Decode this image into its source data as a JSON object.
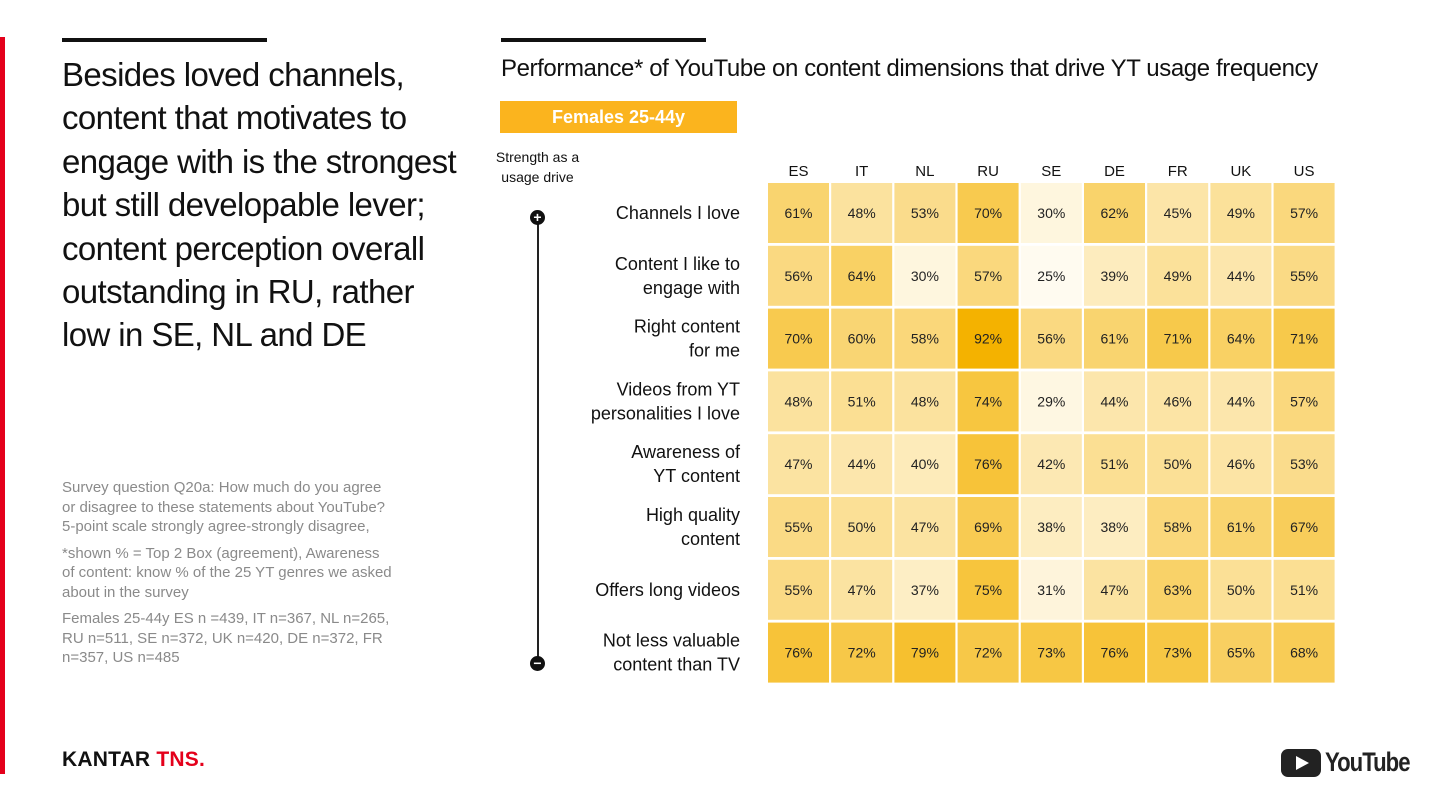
{
  "headline": "Besides loved channels, content that motivates to engage with is the strongest but still developable lever; content perception overall outstanding in RU, rather low in SE, NL and DE",
  "notes": {
    "survey": "Survey question Q20a: How much do you agree or disagree to these statements about YouTube? 5-point scale strongly agree-strongly disagree,",
    "shown": "*shown % = Top 2 Box (agreement), Awareness of content: know % of the 25 YT genres we asked about in the survey",
    "sample": "Females 25-44y ES n =439, IT n=367, NL n=265, RU n=511, SE n=372, UK n=420, DE n=372, FR n=357, US n=485"
  },
  "logos": {
    "kantar_main": "KANTAR",
    "kantar_accent": "TNS.",
    "youtube": "YouTube"
  },
  "colors": {
    "brand_red": "#e4001b",
    "accent_yellow": "#fbb41e",
    "heat_low": "#fffbf0",
    "heat_high": "#f4b200"
  },
  "segment_tag": "Females 25-44y",
  "strength_label": "Strength as a usage drive",
  "axis_ends": {
    "top": "+",
    "bottom": "−"
  },
  "chart_data": {
    "type": "heatmap",
    "title": "Performance* of YouTube on content dimensions that drive YT usage frequency",
    "columns": [
      "ES",
      "IT",
      "NL",
      "RU",
      "SE",
      "DE",
      "FR",
      "UK",
      "US"
    ],
    "rows": [
      {
        "label": [
          "Channels I love"
        ],
        "values": [
          61,
          48,
          53,
          70,
          30,
          62,
          45,
          49,
          57
        ]
      },
      {
        "label": [
          "Content I like to",
          "engage with"
        ],
        "values": [
          56,
          64,
          30,
          57,
          25,
          39,
          49,
          44,
          55
        ]
      },
      {
        "label": [
          "Right content",
          "for me"
        ],
        "values": [
          70,
          60,
          58,
          92,
          56,
          61,
          71,
          64,
          71
        ]
      },
      {
        "label": [
          "Videos from YT",
          "personalities I love"
        ],
        "values": [
          48,
          51,
          48,
          74,
          29,
          44,
          46,
          44,
          57
        ]
      },
      {
        "label": [
          "Awareness of",
          "YT content"
        ],
        "values": [
          47,
          44,
          40,
          76,
          42,
          51,
          50,
          46,
          53
        ]
      },
      {
        "label": [
          "High quality",
          "content"
        ],
        "values": [
          55,
          50,
          47,
          69,
          38,
          38,
          58,
          61,
          67
        ]
      },
      {
        "label": [
          "Offers long videos"
        ],
        "values": [
          55,
          47,
          37,
          75,
          31,
          47,
          63,
          50,
          51
        ]
      },
      {
        "label": [
          "Not less valuable",
          "content than TV"
        ],
        "values": [
          76,
          72,
          79,
          72,
          73,
          76,
          73,
          65,
          68
        ]
      }
    ],
    "value_suffix": "%",
    "scale": [
      25,
      92
    ]
  }
}
